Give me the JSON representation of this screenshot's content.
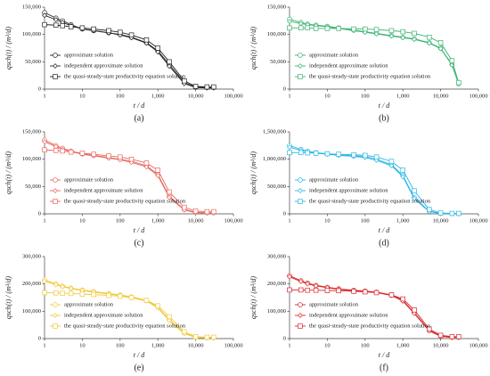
{
  "chart_data": [
    {
      "type": "line",
      "label": "(a)",
      "xlabel": "t / d",
      "ylabel": "qsch(t) / (m³/d)",
      "xscale": "log",
      "legend": "lower left",
      "x": [
        1,
        2,
        3,
        5,
        10,
        20,
        50,
        100,
        200,
        500,
        1000,
        2000,
        5000,
        10000,
        20000,
        30000
      ],
      "xlim": [
        1,
        100000
      ],
      "xticks": [
        1,
        10,
        100,
        {
          "value": 1000,
          "label": "1,000"
        },
        {
          "value": 10000,
          "label": "10,000"
        },
        {
          "value": 100000,
          "label": "100,000"
        }
      ],
      "ylim": [
        0,
        150000
      ],
      "yticks": [
        0,
        {
          "value": 50000,
          "label": "50,000"
        },
        {
          "value": 100000,
          "label": "100,000"
        },
        {
          "value": 150000,
          "label": "150,000"
        }
      ],
      "series": [
        {
          "name": "approximate solution",
          "color": "#222222",
          "marker": "circle",
          "values": [
            140000,
            130000,
            125000,
            118000,
            110000,
            107000,
            103000,
            100000,
            95000,
            85000,
            70000,
            45000,
            12000,
            4000,
            3000,
            3000
          ]
        },
        {
          "name": "independent approximate solution",
          "color": "#222222",
          "marker": "diamond",
          "values": [
            135000,
            127000,
            122000,
            116000,
            110000,
            107000,
            103000,
            99000,
            94000,
            84000,
            68000,
            42000,
            10000,
            3000,
            2000,
            2000
          ]
        },
        {
          "name": "the quasi-steady-state productivity equation solution",
          "color": "#222222",
          "marker": "square",
          "values": [
            118000,
            117000,
            116000,
            114000,
            112000,
            110000,
            107000,
            104000,
            99000,
            90000,
            75000,
            50000,
            15000,
            5000,
            4000,
            4000
          ]
        }
      ]
    },
    {
      "type": "line",
      "label": "(b)",
      "xlabel": "t / d",
      "ylabel": "qsch(t) / (m³/d)",
      "xscale": "log",
      "legend": "lower left",
      "x": [
        1,
        2,
        3,
        5,
        10,
        20,
        50,
        100,
        200,
        500,
        1000,
        2000,
        5000,
        10000,
        20000,
        30000
      ],
      "xlim": [
        1,
        100000
      ],
      "xticks": [
        1,
        10,
        100,
        {
          "value": 1000,
          "label": "1,000"
        },
        {
          "value": 10000,
          "label": "10,000"
        },
        {
          "value": 100000,
          "label": "100,000"
        }
      ],
      "ylim": [
        0,
        150000
      ],
      "yticks": [
        0,
        {
          "value": 50000,
          "label": "50,000"
        },
        {
          "value": 100000,
          "label": "100,000"
        },
        {
          "value": 150000,
          "label": "150,000"
        }
      ],
      "series": [
        {
          "name": "approximate solution",
          "color": "#3cb371",
          "marker": "circle",
          "values": [
            128000,
            122000,
            119000,
            117000,
            115000,
            112000,
            108000,
            105000,
            102000,
            98000,
            95000,
            92000,
            85000,
            75000,
            45000,
            10000
          ]
        },
        {
          "name": "independent approximate solution",
          "color": "#3cb371",
          "marker": "diamond",
          "values": [
            124000,
            120000,
            118000,
            116000,
            114000,
            111000,
            107000,
            104000,
            101000,
            97000,
            94000,
            91000,
            84000,
            74000,
            44000,
            9000
          ]
        },
        {
          "name": "the quasi-steady-state productivity equation solution",
          "color": "#3cb371",
          "marker": "square",
          "values": [
            112000,
            112000,
            112000,
            111000,
            111000,
            111000,
            110000,
            110000,
            109000,
            107000,
            105000,
            102000,
            95000,
            85000,
            52000,
            12000
          ]
        }
      ]
    },
    {
      "type": "line",
      "label": "(c)",
      "xlabel": "t / d",
      "ylabel": "qsch(t) / (m³/d)",
      "xscale": "log",
      "legend": "lower left",
      "x": [
        1,
        2,
        3,
        5,
        10,
        20,
        50,
        100,
        200,
        500,
        1000,
        2000,
        5000,
        10000,
        20000,
        30000
      ],
      "xlim": [
        1,
        100000
      ],
      "xticks": [
        1,
        10,
        100,
        {
          "value": 1000,
          "label": "1,000"
        },
        {
          "value": 10000,
          "label": "10,000"
        },
        {
          "value": 100000,
          "label": "100,000"
        }
      ],
      "ylim": [
        0,
        150000
      ],
      "yticks": [
        0,
        {
          "value": 50000,
          "label": "50,000"
        },
        {
          "value": 100000,
          "label": "100,000"
        },
        {
          "value": 150000,
          "label": "150,000"
        }
      ],
      "series": [
        {
          "name": "approximate solution",
          "color": "#e8675f",
          "marker": "circle",
          "values": [
            135000,
            125000,
            120000,
            115000,
            110000,
            107000,
            103000,
            100000,
            96000,
            88000,
            72000,
            32000,
            8000,
            3000,
            2000,
            2000
          ]
        },
        {
          "name": "independent approximate solution",
          "color": "#e8675f",
          "marker": "diamond",
          "values": [
            132000,
            123000,
            118000,
            114000,
            109000,
            106000,
            102000,
            99000,
            94000,
            86000,
            70000,
            30000,
            7000,
            2000,
            1500,
            1500
          ]
        },
        {
          "name": "the quasi-steady-state productivity equation solution",
          "color": "#e8675f",
          "marker": "square",
          "values": [
            117000,
            116000,
            115000,
            113000,
            111000,
            109000,
            106000,
            104000,
            100000,
            93000,
            80000,
            40000,
            12000,
            5000,
            4000,
            4000
          ]
        }
      ]
    },
    {
      "type": "line",
      "label": "(d)",
      "xlabel": "t / d",
      "ylabel": "qsch(t) / (m³/d)",
      "xscale": "log",
      "legend": "lower left",
      "x": [
        1,
        2,
        3,
        5,
        10,
        20,
        50,
        100,
        200,
        500,
        1000,
        2000,
        5000,
        10000,
        20000,
        30000
      ],
      "xlim": [
        1,
        100000
      ],
      "xticks": [
        1,
        10,
        100,
        {
          "value": 1000,
          "label": "1,000"
        },
        {
          "value": 10000,
          "label": "10,000"
        },
        {
          "value": 100000,
          "label": "100,000"
        }
      ],
      "ylim": [
        0,
        1500000
      ],
      "yticks": [
        0,
        {
          "value": 500000,
          "label": "500,000"
        },
        {
          "value": 1000000,
          "label": "1,000,000"
        },
        {
          "value": 1500000,
          "label": "1,500,000"
        }
      ],
      "series": [
        {
          "name": "approximate solution",
          "color": "#29b6e6",
          "marker": "circle",
          "values": [
            1250000,
            1180000,
            1150000,
            1120000,
            1100000,
            1080000,
            1060000,
            1050000,
            1000000,
            900000,
            700000,
            300000,
            50000,
            8000,
            5000,
            5000
          ]
        },
        {
          "name": "independent approximate solution",
          "color": "#29b6e6",
          "marker": "diamond",
          "values": [
            1220000,
            1160000,
            1130000,
            1110000,
            1090000,
            1070000,
            1050000,
            1030000,
            980000,
            880000,
            680000,
            280000,
            40000,
            6000,
            4000,
            4000
          ]
        },
        {
          "name": "the quasi-steady-state productivity equation solution",
          "color": "#29b6e6",
          "marker": "square",
          "values": [
            1120000,
            1120000,
            1115000,
            1110000,
            1100000,
            1090000,
            1080000,
            1070000,
            1040000,
            960000,
            800000,
            420000,
            80000,
            15000,
            8000,
            8000
          ]
        }
      ]
    },
    {
      "type": "line",
      "label": "(e)",
      "xlabel": "t / d",
      "ylabel": "qsch(t) / (m³/d)",
      "xscale": "log",
      "legend": "lower left",
      "x": [
        1,
        2,
        3,
        5,
        10,
        20,
        50,
        100,
        200,
        500,
        1000,
        2000,
        5000,
        10000,
        20000,
        30000
      ],
      "xlim": [
        1,
        100000
      ],
      "xticks": [
        1,
        10,
        100,
        {
          "value": 1000,
          "label": "1,000"
        },
        {
          "value": 10000,
          "label": "10,000"
        },
        {
          "value": 100000,
          "label": "100,000"
        }
      ],
      "ylim": [
        0,
        300000
      ],
      "yticks": [
        0,
        {
          "value": 100000,
          "label": "100,000"
        },
        {
          "value": 200000,
          "label": "200,000"
        },
        {
          "value": 300000,
          "label": "300,000"
        }
      ],
      "series": [
        {
          "name": "approximate solution",
          "color": "#f0c93a",
          "marker": "circle",
          "values": [
            215000,
            200000,
            192000,
            185000,
            178000,
            172000,
            165000,
            160000,
            153000,
            140000,
            115000,
            70000,
            20000,
            5000,
            3000,
            3000
          ]
        },
        {
          "name": "independent approximate solution",
          "color": "#f0c93a",
          "marker": "diamond",
          "values": [
            210000,
            197000,
            190000,
            183000,
            176000,
            170000,
            163000,
            158000,
            150000,
            137000,
            112000,
            66000,
            18000,
            4000,
            2500,
            2500
          ]
        },
        {
          "name": "the quasi-steady-state productivity equation solution",
          "color": "#f0c93a",
          "marker": "square",
          "values": [
            168000,
            167000,
            166000,
            165000,
            163000,
            161000,
            158000,
            155000,
            150000,
            140000,
            120000,
            80000,
            25000,
            7000,
            5000,
            5000
          ]
        }
      ]
    },
    {
      "type": "line",
      "label": "(f)",
      "xlabel": "t / d",
      "ylabel": "qsch(t) / (m³/d)",
      "xscale": "log",
      "legend": "lower left",
      "x": [
        1,
        2,
        3,
        5,
        10,
        20,
        50,
        100,
        200,
        500,
        1000,
        2000,
        5000,
        10000,
        20000,
        30000
      ],
      "xlim": [
        1,
        100000
      ],
      "xticks": [
        1,
        10,
        100,
        {
          "value": 1000,
          "label": "1,000"
        },
        {
          "value": 10000,
          "label": "10,000"
        },
        {
          "value": 100000,
          "label": "100,000"
        }
      ],
      "ylim": [
        0,
        300000
      ],
      "yticks": [
        0,
        {
          "value": 100000,
          "label": "100,000"
        },
        {
          "value": 200000,
          "label": "200,000"
        },
        {
          "value": 300000,
          "label": "300,000"
        }
      ],
      "series": [
        {
          "name": "approximate solution",
          "color": "#d9262a",
          "marker": "circle",
          "values": [
            230000,
            212000,
            203000,
            195000,
            188000,
            182000,
            177000,
            174000,
            170000,
            160000,
            140000,
            95000,
            30000,
            10000,
            5000,
            5000
          ]
        },
        {
          "name": "independent approximate solution",
          "color": "#d9262a",
          "marker": "diamond",
          "values": [
            226000,
            209000,
            200000,
            193000,
            186000,
            180000,
            175000,
            172000,
            168000,
            158000,
            137000,
            92000,
            28000,
            8000,
            4000,
            4000
          ]
        },
        {
          "name": "the quasi-steady-state productivity equation solution",
          "color": "#d9262a",
          "marker": "square",
          "values": [
            178000,
            178000,
            177000,
            177000,
            176000,
            175000,
            173000,
            171000,
            168000,
            160000,
            145000,
            105000,
            35000,
            12000,
            7000,
            7000
          ]
        }
      ]
    }
  ]
}
